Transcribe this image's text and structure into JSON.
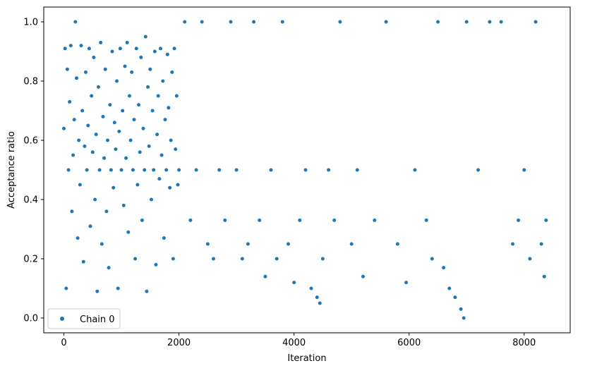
{
  "chart_data": {
    "type": "scatter",
    "title": "",
    "xlabel": "Iteration",
    "ylabel": "Acceptance ratio",
    "xlim": [
      -350,
      8800
    ],
    "ylim": [
      -0.05,
      1.05
    ],
    "xticks": [
      0,
      2000,
      4000,
      6000,
      8000
    ],
    "yticks": [
      0.0,
      0.2,
      0.4,
      0.6,
      0.8,
      1.0
    ],
    "xtick_labels": [
      "0",
      "2000",
      "4000",
      "6000",
      "8000"
    ],
    "ytick_labels": [
      "0.0",
      "0.2",
      "0.4",
      "0.6",
      "0.8",
      "1.0"
    ],
    "grid": false,
    "legend_position": "lower-left",
    "series": [
      {
        "name": "Chain 0",
        "color": "#1f77b4",
        "marker": "circle",
        "points": [
          [
            0,
            0.64
          ],
          [
            20,
            0.91
          ],
          [
            40,
            0.1
          ],
          [
            60,
            0.84
          ],
          [
            80,
            0.5
          ],
          [
            100,
            0.73
          ],
          [
            120,
            0.92
          ],
          [
            140,
            0.36
          ],
          [
            160,
            0.55
          ],
          [
            180,
            0.67
          ],
          [
            200,
            1.0
          ],
          [
            220,
            0.81
          ],
          [
            240,
            0.27
          ],
          [
            260,
            0.6
          ],
          [
            280,
            0.45
          ],
          [
            300,
            0.92
          ],
          [
            320,
            0.7
          ],
          [
            340,
            0.19
          ],
          [
            360,
            0.58
          ],
          [
            380,
            0.83
          ],
          [
            400,
            0.5
          ],
          [
            420,
            0.65
          ],
          [
            440,
            0.91
          ],
          [
            460,
            0.31
          ],
          [
            480,
            0.75
          ],
          [
            500,
            0.56
          ],
          [
            520,
            0.88
          ],
          [
            540,
            0.4
          ],
          [
            560,
            0.62
          ],
          [
            580,
            0.09
          ],
          [
            600,
            0.78
          ],
          [
            620,
            0.5
          ],
          [
            640,
            0.93
          ],
          [
            660,
            0.25
          ],
          [
            680,
            0.68
          ],
          [
            700,
            0.54
          ],
          [
            720,
            0.84
          ],
          [
            740,
            0.36
          ],
          [
            760,
            0.6
          ],
          [
            780,
            0.17
          ],
          [
            800,
            0.72
          ],
          [
            820,
            0.5
          ],
          [
            840,
            0.9
          ],
          [
            860,
            0.44
          ],
          [
            880,
            0.66
          ],
          [
            900,
            0.57
          ],
          [
            920,
            0.8
          ],
          [
            940,
            0.1
          ],
          [
            960,
            0.63
          ],
          [
            980,
            0.91
          ],
          [
            1000,
            0.5
          ],
          [
            1020,
            0.7
          ],
          [
            1040,
            0.38
          ],
          [
            1060,
            0.85
          ],
          [
            1080,
            0.54
          ],
          [
            1100,
            0.93
          ],
          [
            1120,
            0.29
          ],
          [
            1140,
            0.75
          ],
          [
            1160,
            0.6
          ],
          [
            1180,
            0.83
          ],
          [
            1200,
            0.5
          ],
          [
            1220,
            0.67
          ],
          [
            1240,
            0.2
          ],
          [
            1260,
            0.91
          ],
          [
            1280,
            0.45
          ],
          [
            1300,
            0.72
          ],
          [
            1320,
            0.56
          ],
          [
            1340,
            0.88
          ],
          [
            1360,
            0.33
          ],
          [
            1380,
            0.64
          ],
          [
            1400,
            0.5
          ],
          [
            1420,
            0.95
          ],
          [
            1440,
            0.09
          ],
          [
            1460,
            0.78
          ],
          [
            1480,
            0.58
          ],
          [
            1500,
            0.84
          ],
          [
            1520,
            0.4
          ],
          [
            1540,
            0.7
          ],
          [
            1560,
            0.5
          ],
          [
            1580,
            0.9
          ],
          [
            1600,
            0.18
          ],
          [
            1620,
            0.62
          ],
          [
            1640,
            0.75
          ],
          [
            1660,
            0.47
          ],
          [
            1680,
            0.91
          ],
          [
            1700,
            0.55
          ],
          [
            1720,
            0.8
          ],
          [
            1740,
            0.27
          ],
          [
            1760,
            0.67
          ],
          [
            1780,
            0.5
          ],
          [
            1800,
            0.89
          ],
          [
            1820,
            0.71
          ],
          [
            1840,
            0.44
          ],
          [
            1860,
            0.6
          ],
          [
            1880,
            0.83
          ],
          [
            1900,
            0.2
          ],
          [
            1920,
            0.91
          ],
          [
            1940,
            0.57
          ],
          [
            1960,
            0.75
          ],
          [
            1980,
            0.45
          ],
          [
            2000,
            0.5
          ],
          [
            2100,
            1.0
          ],
          [
            2200,
            0.33
          ],
          [
            2300,
            0.5
          ],
          [
            2400,
            1.0
          ],
          [
            2500,
            0.25
          ],
          [
            2600,
            0.2
          ],
          [
            2700,
            0.5
          ],
          [
            2800,
            0.33
          ],
          [
            2900,
            1.0
          ],
          [
            3000,
            0.5
          ],
          [
            3100,
            0.2
          ],
          [
            3200,
            0.25
          ],
          [
            3300,
            1.0
          ],
          [
            3400,
            0.33
          ],
          [
            3500,
            0.14
          ],
          [
            3600,
            0.5
          ],
          [
            3700,
            0.2
          ],
          [
            3800,
            1.0
          ],
          [
            3900,
            0.25
          ],
          [
            4000,
            0.12
          ],
          [
            4100,
            0.33
          ],
          [
            4200,
            0.5
          ],
          [
            4300,
            0.1
          ],
          [
            4400,
            0.07
          ],
          [
            4450,
            0.05
          ],
          [
            4500,
            0.2
          ],
          [
            4600,
            0.5
          ],
          [
            4700,
            0.33
          ],
          [
            4800,
            1.0
          ],
          [
            5000,
            0.25
          ],
          [
            5100,
            0.5
          ],
          [
            5200,
            0.14
          ],
          [
            5400,
            0.33
          ],
          [
            5600,
            1.0
          ],
          [
            5800,
            0.25
          ],
          [
            5950,
            0.12
          ],
          [
            6100,
            0.5
          ],
          [
            6300,
            0.33
          ],
          [
            6400,
            0.2
          ],
          [
            6500,
            1.0
          ],
          [
            6600,
            0.17
          ],
          [
            6700,
            0.1
          ],
          [
            6800,
            0.07
          ],
          [
            6900,
            0.03
          ],
          [
            6950,
            0.0
          ],
          [
            7000,
            1.0
          ],
          [
            7200,
            0.5
          ],
          [
            7400,
            1.0
          ],
          [
            7600,
            1.0
          ],
          [
            7800,
            0.25
          ],
          [
            7900,
            0.33
          ],
          [
            8000,
            0.5
          ],
          [
            8100,
            0.2
          ],
          [
            8200,
            1.0
          ],
          [
            8300,
            0.25
          ],
          [
            8350,
            0.14
          ],
          [
            8380,
            0.33
          ]
        ]
      }
    ]
  }
}
